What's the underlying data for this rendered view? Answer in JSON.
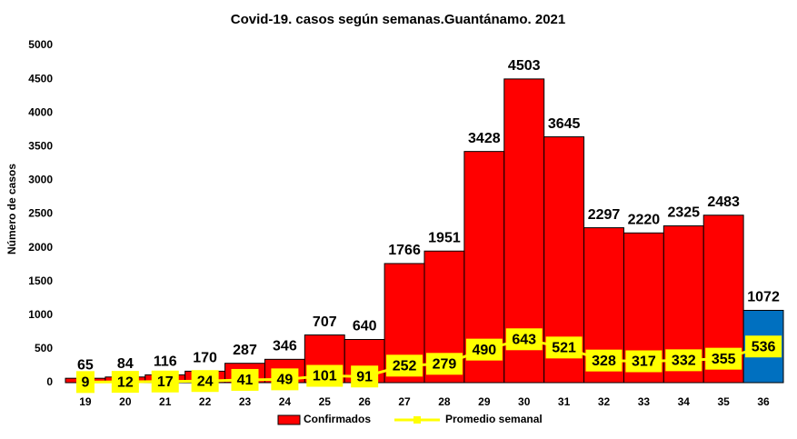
{
  "chart_data": {
    "type": "bar",
    "title": "Covid-19. casos según semanas.Guantánamo. 2021",
    "y_label": "Número de casos",
    "categories": [
      "19",
      "20",
      "21",
      "22",
      "23",
      "24",
      "25",
      "26",
      "27",
      "28",
      "29",
      "30",
      "31",
      "32",
      "33",
      "34",
      "35",
      "36"
    ],
    "series": [
      {
        "name": "Confirmados",
        "type": "bar",
        "color": "#ff0000",
        "colors": [
          "#ff0000",
          "#ff0000",
          "#ff0000",
          "#ff0000",
          "#ff0000",
          "#ff0000",
          "#ff0000",
          "#ff0000",
          "#ff0000",
          "#ff0000",
          "#ff0000",
          "#ff0000",
          "#ff0000",
          "#ff0000",
          "#ff0000",
          "#ff0000",
          "#ff0000",
          "#0070c0"
        ],
        "values": [
          65,
          84,
          116,
          170,
          287,
          346,
          707,
          640,
          1766,
          1951,
          3428,
          4503,
          3645,
          2297,
          2220,
          2325,
          2483,
          1072
        ]
      },
      {
        "name": "Promedio semanal",
        "type": "line",
        "color": "#ffff00",
        "values": [
          9,
          12,
          17,
          24,
          41,
          49,
          101,
          91,
          252,
          279,
          490,
          643,
          521,
          328,
          317,
          332,
          355,
          536
        ]
      }
    ],
    "ylim": [
      0,
      5000
    ],
    "yticks": [
      0,
      500,
      1000,
      1500,
      2000,
      2500,
      3000,
      3500,
      4000,
      4500,
      5000
    ],
    "grid": false,
    "legend": "bottom"
  }
}
